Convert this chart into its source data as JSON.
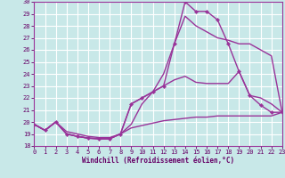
{
  "xlabel": "Windchill (Refroidissement éolien,°C)",
  "xlim": [
    0,
    23
  ],
  "ylim": [
    18,
    30
  ],
  "xticks": [
    0,
    1,
    2,
    3,
    4,
    5,
    6,
    7,
    8,
    9,
    10,
    11,
    12,
    13,
    14,
    15,
    16,
    17,
    18,
    19,
    20,
    21,
    22,
    23
  ],
  "yticks": [
    18,
    19,
    20,
    21,
    22,
    23,
    24,
    25,
    26,
    27,
    28,
    29,
    30
  ],
  "bg_color": "#c8e8e8",
  "grid_color": "#ffffff",
  "line_color": "#993399",
  "line_width": 1.0,
  "marker": "D",
  "marker_size": 2.2,
  "curves": [
    {
      "x": [
        0,
        1,
        2,
        3,
        4,
        5,
        6,
        7,
        8,
        9,
        10,
        11,
        12,
        13,
        14,
        15,
        16,
        17,
        18,
        19,
        20,
        21,
        22,
        23
      ],
      "y": [
        19.8,
        19.3,
        20.0,
        19.0,
        18.8,
        18.65,
        18.6,
        18.6,
        19.0,
        21.5,
        22.0,
        22.5,
        23.0,
        26.5,
        30.0,
        29.2,
        29.2,
        28.5,
        26.5,
        24.2,
        22.2,
        21.4,
        20.8,
        20.8
      ],
      "has_markers": true
    },
    {
      "x": [
        0,
        1,
        2,
        3,
        4,
        5,
        6,
        7,
        8,
        9,
        10,
        11,
        12,
        13,
        14,
        15,
        16,
        17,
        18,
        19,
        20,
        21,
        22,
        23
      ],
      "y": [
        19.8,
        19.3,
        20.0,
        19.0,
        18.8,
        18.65,
        18.6,
        18.6,
        19.0,
        19.8,
        21.5,
        22.5,
        24.0,
        26.5,
        28.8,
        28.0,
        27.5,
        27.0,
        26.8,
        26.5,
        26.5,
        26.0,
        25.5,
        20.8
      ],
      "has_markers": false
    },
    {
      "x": [
        0,
        1,
        2,
        3,
        4,
        5,
        6,
        7,
        8,
        9,
        10,
        11,
        12,
        13,
        14,
        15,
        16,
        17,
        18,
        19,
        20,
        21,
        22,
        23
      ],
      "y": [
        19.8,
        19.3,
        20.0,
        19.0,
        18.8,
        18.65,
        18.6,
        18.6,
        19.0,
        21.5,
        22.0,
        22.5,
        23.0,
        23.5,
        23.8,
        23.3,
        23.2,
        23.2,
        23.2,
        24.2,
        22.2,
        22.0,
        21.5,
        20.8
      ],
      "has_markers": false
    },
    {
      "x": [
        0,
        1,
        2,
        3,
        4,
        5,
        6,
        7,
        8,
        9,
        10,
        11,
        12,
        13,
        14,
        15,
        16,
        17,
        18,
        19,
        20,
        21,
        22,
        23
      ],
      "y": [
        19.8,
        19.3,
        20.0,
        19.2,
        19.0,
        18.8,
        18.7,
        18.7,
        19.0,
        19.5,
        19.7,
        19.9,
        20.1,
        20.2,
        20.3,
        20.4,
        20.4,
        20.5,
        20.5,
        20.5,
        20.5,
        20.5,
        20.5,
        20.8
      ],
      "has_markers": false
    }
  ]
}
